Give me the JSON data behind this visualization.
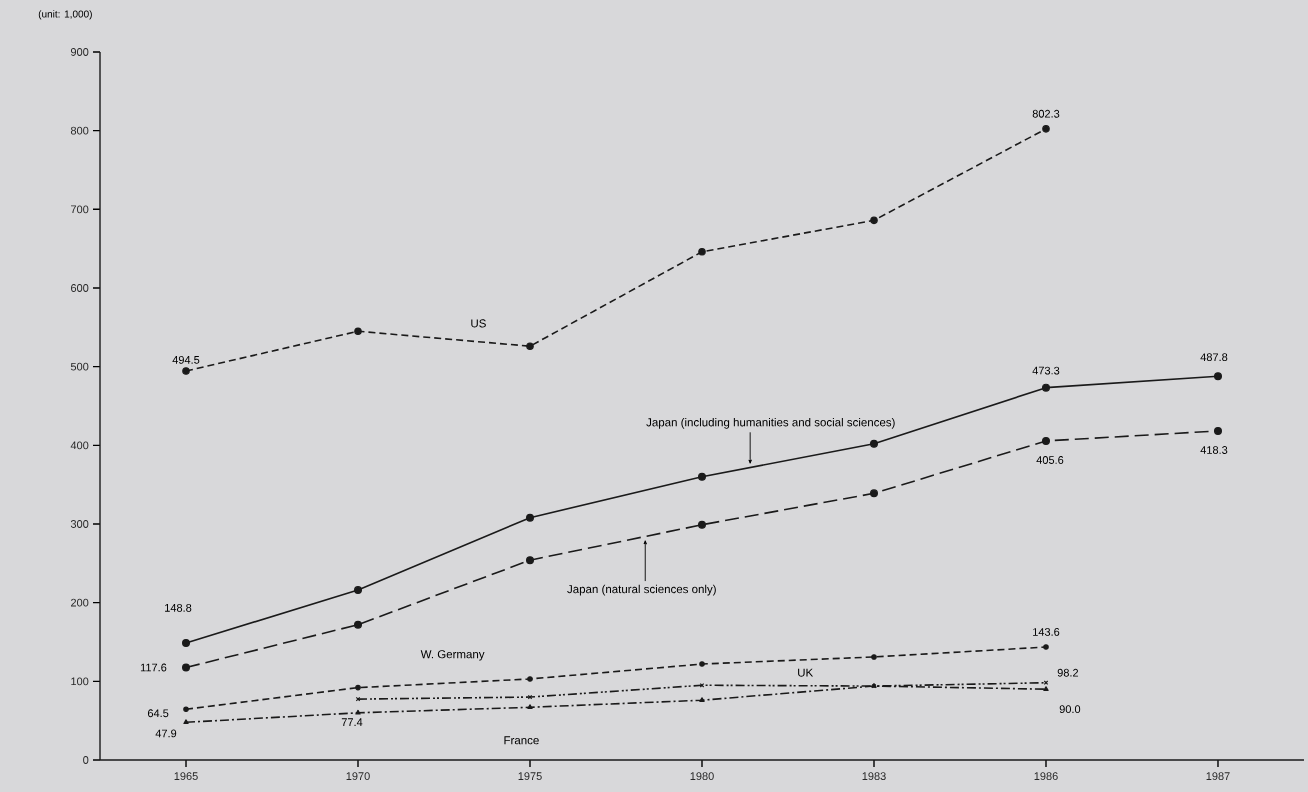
{
  "chart_data": {
    "type": "line",
    "ylabel": "(unit: 1,000)",
    "categories": [
      "1965",
      "1970",
      "1975",
      "1980",
      "1983",
      "1986",
      "1987"
    ],
    "ylim": [
      0,
      900
    ],
    "yticks": [
      0,
      100,
      200,
      300,
      400,
      500,
      600,
      700,
      800,
      900
    ],
    "grid": false,
    "legend": false,
    "color": "#1a1a1a",
    "series": [
      {
        "name": "US",
        "color": "#1a1a1a",
        "line_style": "dashed",
        "marker": "circle",
        "values": [
          494.5,
          545,
          526,
          646,
          686,
          802.3,
          null
        ],
        "value_labels": [
          "494.5",
          null,
          null,
          null,
          null,
          "802.3",
          null
        ]
      },
      {
        "name": "Japan (including humanities and social sciences)",
        "color": "#1a1a1a",
        "line_style": "solid",
        "marker": "circle",
        "values": [
          148.8,
          216,
          308,
          360,
          402,
          473.3,
          487.8
        ],
        "value_labels": [
          "148.8",
          null,
          null,
          null,
          null,
          "473.3",
          "487.8"
        ]
      },
      {
        "name": "Japan (natural sciences only)",
        "color": "#1a1a1a",
        "line_style": "long dashed",
        "marker": "circle",
        "values": [
          117.6,
          172,
          254,
          299,
          339,
          405.6,
          418.3
        ],
        "value_labels": [
          "117.6",
          null,
          null,
          null,
          null,
          "405.6",
          "418.3"
        ]
      },
      {
        "name": "W. Germany",
        "color": "#1a1a1a",
        "line_style": "dashed",
        "marker": "circle",
        "values": [
          64.5,
          92,
          103,
          122,
          131,
          143.6,
          null
        ],
        "value_labels": [
          "64.5",
          null,
          null,
          null,
          null,
          "143.6",
          null
        ]
      },
      {
        "name": "UK",
        "color": "#1a1a1a",
        "line_style": "dashdotdot",
        "marker": "cross",
        "values": [
          null,
          77.4,
          80,
          95,
          94,
          98.2,
          null
        ],
        "value_labels": [
          null,
          "77.4",
          null,
          null,
          null,
          "98.2",
          null
        ]
      },
      {
        "name": "France",
        "color": "#1a1a1a",
        "line_style": "dashdot",
        "marker": "triangle",
        "values": [
          47.9,
          60,
          67,
          76,
          94,
          90.0,
          null
        ],
        "value_labels": [
          "47.9",
          null,
          null,
          null,
          null,
          "90.0",
          null
        ]
      }
    ]
  }
}
